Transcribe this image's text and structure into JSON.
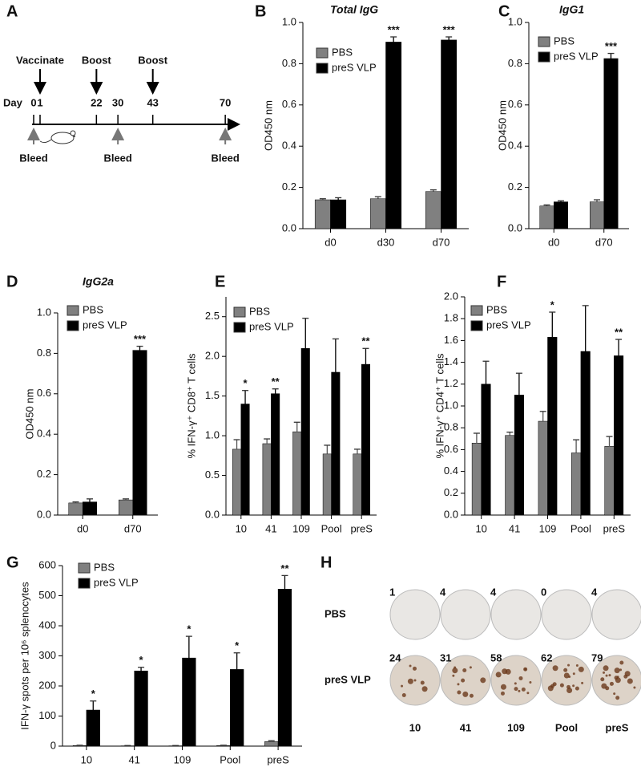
{
  "chart_data": [
    {
      "type": "bar",
      "panel": "B",
      "title": "Total IgG",
      "ylabel": "OD450 nm",
      "categories": [
        "d0",
        "d30",
        "d70"
      ],
      "series": [
        {
          "name": "PBS",
          "color": "#808080",
          "values": [
            0.14,
            0.145,
            0.18
          ],
          "errors": [
            0.005,
            0.01,
            0.008
          ]
        },
        {
          "name": "preS VLP",
          "color": "#000000",
          "values": [
            0.14,
            0.905,
            0.915
          ],
          "errors": [
            0.01,
            0.025,
            0.015
          ],
          "significance": [
            null,
            "***",
            "***"
          ]
        }
      ],
      "ylim": [
        0,
        1.0
      ],
      "yticks": [
        {
          "value": 0,
          "label": "0.0"
        },
        0.2,
        0.4,
        0.6,
        0.8,
        {
          "value": 1,
          "label": "1.0"
        }
      ],
      "legend": "upper left"
    },
    {
      "type": "bar",
      "panel": "C",
      "title": "IgG1",
      "ylabel": "OD450 nm",
      "categories": [
        "d0",
        "d70"
      ],
      "series": [
        {
          "name": "PBS",
          "color": "#808080",
          "values": [
            0.11,
            0.13
          ],
          "errors": [
            0.005,
            0.01
          ]
        },
        {
          "name": "preS VLP",
          "color": "#000000",
          "values": [
            0.13,
            0.825
          ],
          "errors": [
            0.005,
            0.025
          ],
          "significance": [
            null,
            "***"
          ]
        }
      ],
      "ylim": [
        0,
        1.0
      ],
      "yticks": [
        {
          "value": 0,
          "label": "0.0"
        },
        0.2,
        0.4,
        0.6,
        0.8,
        {
          "value": 1,
          "label": "1.0"
        }
      ],
      "legend": "upper left"
    },
    {
      "type": "bar",
      "panel": "D",
      "title": "IgG2a",
      "ylabel": "OD450 nm",
      "categories": [
        "d0",
        "d70"
      ],
      "series": [
        {
          "name": "PBS",
          "color": "#808080",
          "values": [
            0.06,
            0.075
          ],
          "errors": [
            0.005,
            0.005
          ]
        },
        {
          "name": "preS VLP",
          "color": "#000000",
          "values": [
            0.065,
            0.815
          ],
          "errors": [
            0.015,
            0.02
          ],
          "significance": [
            null,
            "***"
          ]
        }
      ],
      "ylim": [
        0,
        1.0
      ],
      "yticks": [
        {
          "value": 0,
          "label": "0.0"
        },
        0.2,
        0.4,
        0.6,
        0.8,
        {
          "value": 1,
          "label": "1.0"
        }
      ],
      "legend": "upper left"
    },
    {
      "type": "bar",
      "panel": "E",
      "ylabel": "% IFN-γ⁺ CD8⁺ T cells",
      "categories": [
        "10",
        "41",
        "109",
        "Pool",
        "preS"
      ],
      "series": [
        {
          "name": "PBS",
          "color": "#808080",
          "values": [
            0.83,
            0.9,
            1.05,
            0.77,
            0.77
          ],
          "errors": [
            0.12,
            0.06,
            0.12,
            0.11,
            0.06
          ]
        },
        {
          "name": "preS VLP",
          "color": "#000000",
          "values": [
            1.4,
            1.53,
            2.1,
            1.8,
            1.9
          ],
          "errors": [
            0.17,
            0.06,
            0.38,
            0.42,
            0.2
          ],
          "significance": [
            "*",
            "**",
            null,
            null,
            "**"
          ]
        }
      ],
      "ylim": [
        0,
        2.75
      ],
      "yticks": [
        {
          "value": 0,
          "label": "0.0"
        },
        0.5,
        {
          "value": 1,
          "label": "1.0"
        },
        1.5,
        {
          "value": 2,
          "label": "2.0"
        },
        2.5
      ],
      "legend": "upper left"
    },
    {
      "type": "bar",
      "panel": "F",
      "ylabel": "% IFN-γ⁺ CD4⁺ T cells",
      "categories": [
        "10",
        "41",
        "109",
        "Pool",
        "preS"
      ],
      "series": [
        {
          "name": "PBS",
          "color": "#808080",
          "values": [
            0.66,
            0.73,
            0.86,
            0.57,
            0.63
          ],
          "errors": [
            0.09,
            0.03,
            0.09,
            0.12,
            0.09
          ]
        },
        {
          "name": "preS VLP",
          "color": "#000000",
          "values": [
            1.2,
            1.1,
            1.63,
            1.5,
            1.46
          ],
          "errors": [
            0.21,
            0.2,
            0.23,
            0.42,
            0.15
          ],
          "significance": [
            null,
            null,
            "*",
            null,
            "**"
          ]
        }
      ],
      "ylim": [
        0,
        2.0
      ],
      "yticks": [
        {
          "value": 0,
          "label": "0.0"
        },
        0.2,
        0.4,
        0.6,
        0.8,
        {
          "value": 1,
          "label": "1.0"
        },
        1.2,
        1.4,
        1.6,
        1.8,
        {
          "value": 2,
          "label": "2.0"
        }
      ],
      "legend": "upper left"
    },
    {
      "type": "bar",
      "panel": "G",
      "ylabel": "IFN-γ spots per 10⁶ splenocytes",
      "categories": [
        "10",
        "41",
        "109",
        "Pool",
        "preS"
      ],
      "series": [
        {
          "name": "PBS",
          "color": "#808080",
          "values": [
            2,
            1,
            1,
            2,
            15
          ],
          "errors": [
            1,
            1,
            1,
            1,
            3
          ]
        },
        {
          "name": "preS VLP",
          "color": "#000000",
          "values": [
            120,
            250,
            293,
            255,
            522
          ],
          "errors": [
            30,
            12,
            72,
            55,
            45
          ],
          "significance": [
            "*",
            "*",
            "*",
            "*",
            "**"
          ]
        }
      ],
      "ylim": [
        0,
        600
      ],
      "yticks": [
        0,
        100,
        200,
        300,
        400,
        500,
        600
      ],
      "legend": "upper left"
    }
  ],
  "timeline": {
    "panel": "A",
    "axis_label": "Day",
    "days": [
      0,
      1,
      22,
      30,
      43,
      70
    ],
    "above": [
      {
        "text": "Vaccinate",
        "day": 1
      },
      {
        "text": "Boost",
        "day": 22
      },
      {
        "text": "Boost",
        "day": 43
      }
    ],
    "below": [
      {
        "text": "Bleed",
        "day": 0
      },
      {
        "text": "Bleed",
        "day": 30
      },
      {
        "text": "Bleed",
        "day": 70
      }
    ]
  },
  "elispot": {
    "panel": "H",
    "rows": [
      {
        "label": "PBS",
        "counts": [
          1,
          4,
          4,
          0,
          4
        ]
      },
      {
        "label": "preS VLP",
        "counts": [
          24,
          31,
          58,
          62,
          79
        ]
      }
    ],
    "columns": [
      "10",
      "41",
      "109",
      "Pool",
      "preS"
    ]
  }
}
